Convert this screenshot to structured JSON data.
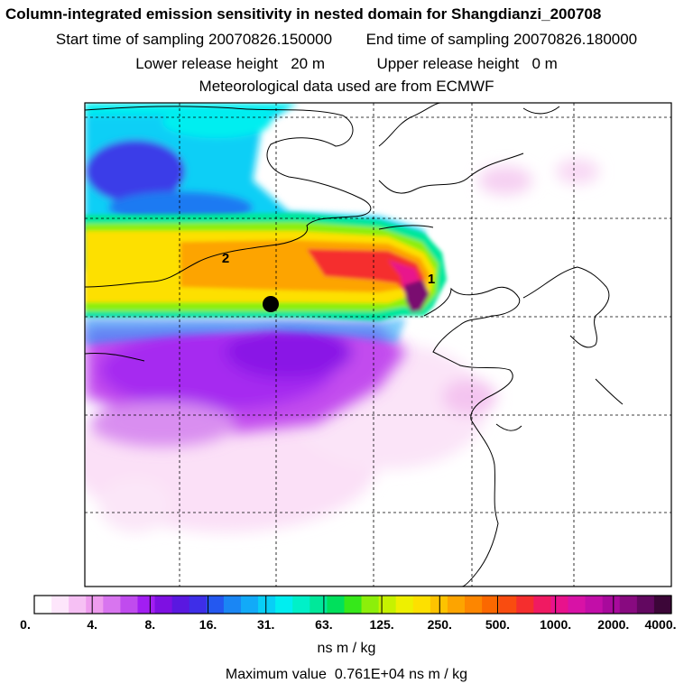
{
  "title": {
    "line1": "Column-integrated emission sensitivity in nested domain for Shangdianzi_200708",
    "start_label": "Start time of sampling",
    "start_value": "20070826.150000",
    "end_label": "End time of sampling",
    "end_value": "20070826.180000",
    "lower_label": "Lower release height",
    "lower_value": "20 m",
    "upper_label": "Upper release height",
    "upper_value": "0 m",
    "met_line": "Meteorological data used are from ECMWF"
  },
  "map": {
    "contour_labels": [
      "2",
      "1"
    ],
    "station_marker": "receptor-point"
  },
  "colorbar": {
    "colors": [
      "#ffffff",
      "#fde6fb",
      "#f6c0f4",
      "#ee9cee",
      "#d875ef",
      "#c04bee",
      "#a21ef2",
      "#7e10e2",
      "#5a18e0",
      "#3e2ee8",
      "#2458f0",
      "#1a86f4",
      "#12aaf8",
      "#08cff6",
      "#00eef0",
      "#00f0c8",
      "#00e89a",
      "#00e05c",
      "#36e81a",
      "#8cef0a",
      "#c6f200",
      "#eef000",
      "#fde000",
      "#fdc300",
      "#fda400",
      "#fd8600",
      "#fb6800",
      "#f94c10",
      "#f52e2e",
      "#f01a62",
      "#e8128c",
      "#d812a6",
      "#c20ea8",
      "#a80a9c",
      "#880a80",
      "#620860",
      "#3c0638"
    ],
    "tick_labels": [
      "0.",
      "4.",
      "8.",
      "16.",
      "31.",
      "63.",
      "125.",
      "250.",
      "500.",
      "1000.",
      "2000.",
      "4000."
    ],
    "units": "ns m / kg",
    "max_label": "Maximum value",
    "max_value": "0.761E+04",
    "max_units": "ns m / kg"
  }
}
